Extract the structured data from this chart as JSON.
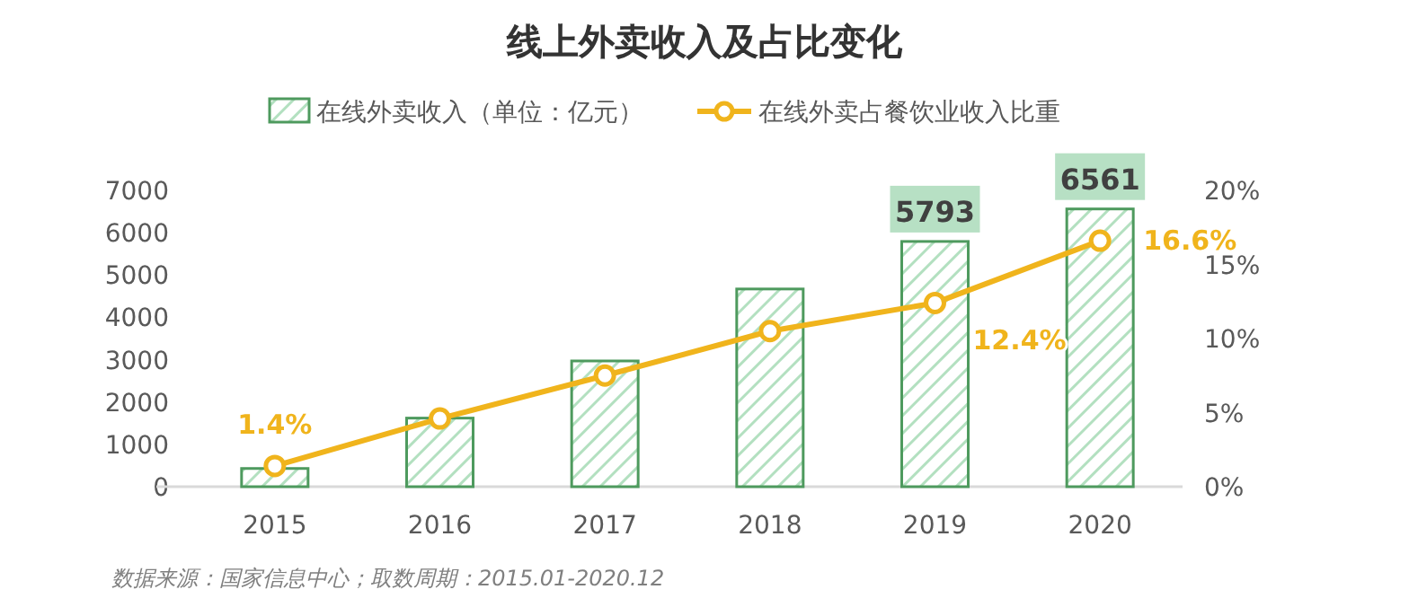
{
  "chart_data": {
    "type": "bar",
    "title": "线上外卖收入及占比变化",
    "categories": [
      "2015",
      "2016",
      "2017",
      "2018",
      "2019",
      "2020"
    ],
    "series": [
      {
        "name": "在线外卖收入（单位：亿元）",
        "color": "#4e9a5e",
        "values": [
          430,
          1620,
          2970,
          4670,
          5793,
          6561
        ],
        "value_labels": [
          null,
          null,
          null,
          null,
          "5793",
          "6561"
        ]
      },
      {
        "name": "在线外卖占餐饮业收入比重",
        "type": "line",
        "axis": "y2",
        "color": "#f0b41c",
        "values": [
          1.4,
          4.6,
          7.5,
          10.5,
          12.4,
          16.6
        ],
        "value_labels": [
          "1.4%",
          null,
          null,
          null,
          "12.4%",
          "16.6%"
        ]
      }
    ],
    "ylim": [
      0,
      7000
    ],
    "yticks": [
      0,
      1000,
      2000,
      3000,
      4000,
      5000,
      6000,
      7000
    ],
    "y2lim": [
      0,
      20
    ],
    "y2ticks": [
      {
        "value": 0,
        "label": "0%"
      },
      {
        "value": 5,
        "label": "5%"
      },
      {
        "value": 10,
        "label": "10%"
      },
      {
        "value": 15,
        "label": "15%"
      },
      {
        "value": 20,
        "label": "20%"
      }
    ],
    "legend": "top",
    "marker": "circle",
    "grid": false,
    "annotations": [
      "数据来源：国家信息中心；取数周期：2015.01-2020.12"
    ]
  }
}
